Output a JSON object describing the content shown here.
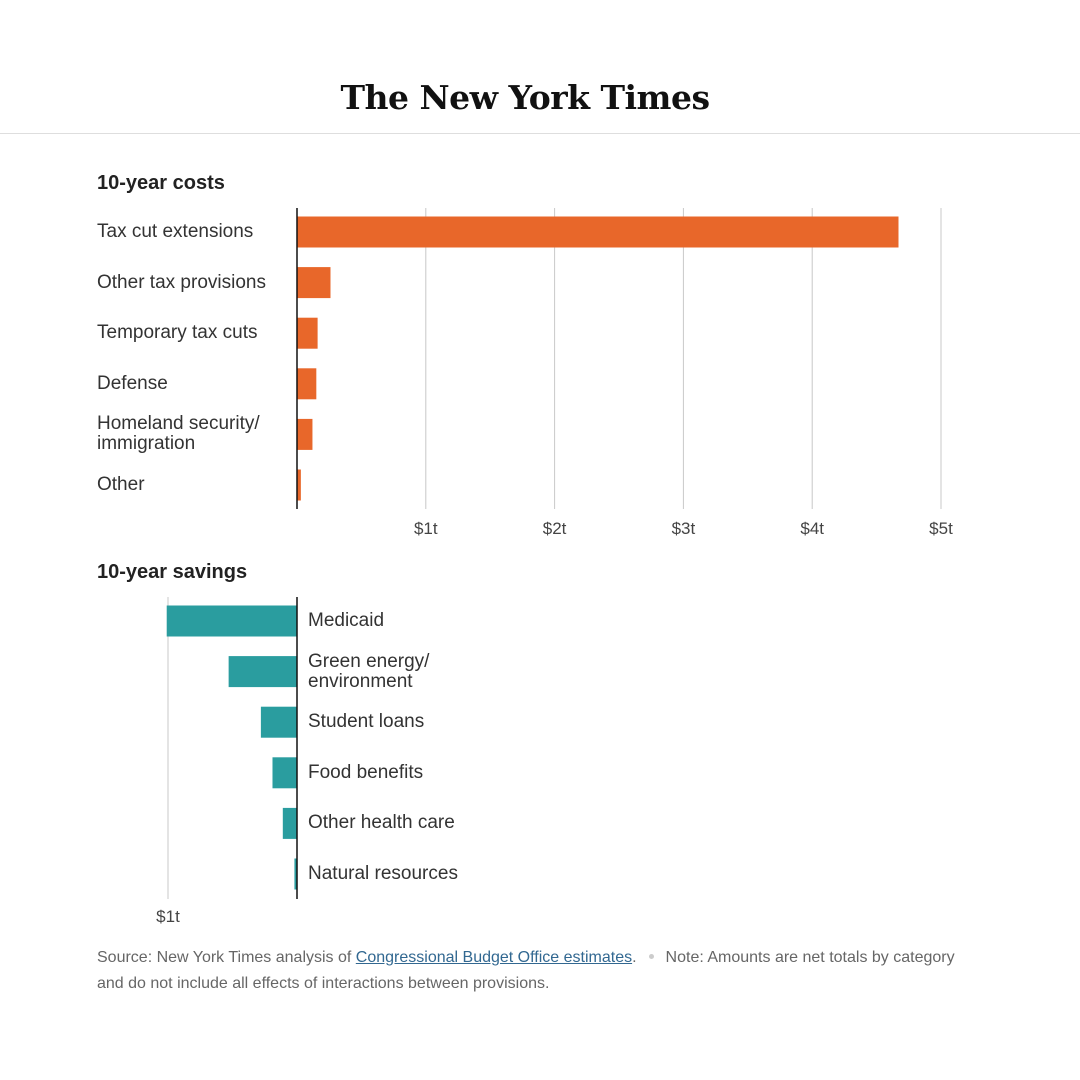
{
  "header": {
    "masthead": "The New York Times"
  },
  "chart_data": [
    {
      "type": "bar",
      "orientation": "horizontal",
      "title": "10-year costs",
      "categories": [
        "Tax cut extensions",
        "Other tax provisions",
        "Temporary tax cuts",
        "Defense",
        "Homeland security/ immigration",
        "Other"
      ],
      "values": [
        4.67,
        0.26,
        0.16,
        0.15,
        0.12,
        0.03
      ],
      "color": "#e8672a",
      "xlim": [
        0,
        5
      ],
      "xticks": [
        {
          "value": 1,
          "label": "$1t"
        },
        {
          "value": 2,
          "label": "$2t"
        },
        {
          "value": 3,
          "label": "$3t"
        },
        {
          "value": 4,
          "label": "$4t"
        },
        {
          "value": 5,
          "label": "$5t"
        }
      ],
      "grid": true
    },
    {
      "type": "bar",
      "orientation": "horizontal",
      "title": "10-year savings",
      "categories": [
        "Medicaid",
        "Green energy/ environment",
        "Student loans",
        "Food benefits",
        "Other health care",
        "Natural resources"
      ],
      "values": [
        1.01,
        0.53,
        0.28,
        0.19,
        0.11,
        0.02
      ],
      "color": "#2a9d9f",
      "xlim": [
        1,
        0
      ],
      "xticks": [
        {
          "value": 1,
          "label": "$1t"
        }
      ],
      "grid": true
    }
  ],
  "footer": {
    "source": "Source: New York Times analysis of",
    "source_link": "Congressional Budget Office estimates",
    "source_end": ".",
    "note": "Note: Amounts are net totals by category and do not include all effects of interactions between provisions."
  }
}
